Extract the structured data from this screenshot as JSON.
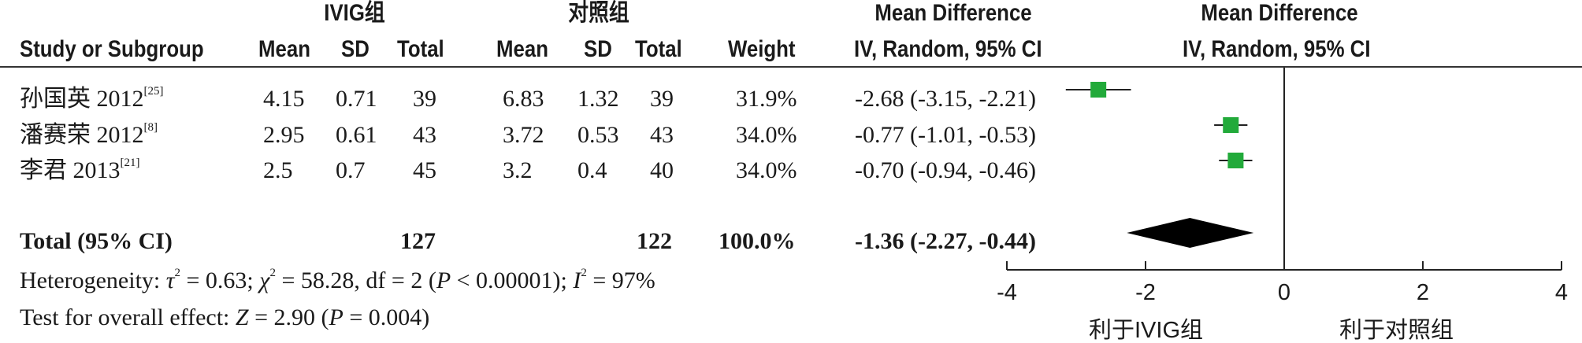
{
  "headers": {
    "group_exp": "IVIG组",
    "group_ctrl": "对照组",
    "md_label_table": "Mean Difference",
    "md_label_plot": "Mean Difference",
    "study_col": "Study or Subgroup",
    "mean_exp": "Mean",
    "sd_exp": "SD",
    "total_exp": "Total",
    "mean_ctrl": "Mean",
    "sd_ctrl": "SD",
    "total_ctrl": "Total",
    "weight": "Weight",
    "method_table": "IV, Random, 95% CI",
    "method_plot": "IV, Random, 95% CI"
  },
  "studies": [
    {
      "name": "孙国英 2012",
      "ref": "[25]",
      "mean_exp": "4.15",
      "sd_exp": "0.71",
      "total_exp": "39",
      "mean_ctrl": "6.83",
      "sd_ctrl": "1.32",
      "total_ctrl": "39",
      "weight": "31.9%",
      "ci_text": "-2.68 (-3.15, -2.21)"
    },
    {
      "name": "潘赛荣 2012",
      "ref": "[8]",
      "mean_exp": "2.95",
      "sd_exp": "0.61",
      "total_exp": "43",
      "mean_ctrl": "3.72",
      "sd_ctrl": "0.53",
      "total_ctrl": "43",
      "weight": "34.0%",
      "ci_text": "-0.77 (-1.01, -0.53)"
    },
    {
      "name": "李君 2013",
      "ref": "[21]",
      "mean_exp": "2.5",
      "sd_exp": "0.7",
      "total_exp": "45",
      "mean_ctrl": "3.2",
      "sd_ctrl": "0.4",
      "total_ctrl": "40",
      "weight": "34.0%",
      "ci_text": "-0.70 (-0.94, -0.46)"
    }
  ],
  "total": {
    "label": "Total (95% CI)",
    "total_exp": "127",
    "total_ctrl": "122",
    "weight": "100.0%",
    "ci_text": "-1.36 (-2.27, -0.44)"
  },
  "heterogeneity": {
    "prefix": "Heterogeneity: ",
    "tau": "τ",
    "tau_val": " = 0.63; ",
    "chi": "χ",
    "chi_val": " = 58.28, df = 2 (",
    "p1": "P",
    "p1_val": " < 0.00001); ",
    "i": "I",
    "i_val": " = 97%"
  },
  "overall": {
    "prefix": "Test for overall effect: ",
    "z": "Z",
    "z_val": " = 2.90 (",
    "p": "P",
    "p_val": " = 0.004)"
  },
  "axis": {
    "favours_left": "利于IVIG组",
    "favours_right": "利于对照组"
  },
  "colors": {
    "marker": "#22aa3a",
    "diamond": "#000000",
    "text": "#1a1a1a"
  },
  "chart_data": {
    "type": "forest",
    "xlim": [
      -4,
      4
    ],
    "ticks": [
      -4,
      -2,
      0,
      2,
      4
    ],
    "tick_labels": [
      "-4",
      "-2",
      "0",
      "2",
      "4"
    ],
    "null_line": 0,
    "studies": [
      {
        "name": "孙国英 2012",
        "md": -2.68,
        "lower": -3.15,
        "upper": -2.21,
        "weight": 31.9
      },
      {
        "name": "潘赛荣 2012",
        "md": -0.77,
        "lower": -1.01,
        "upper": -0.53,
        "weight": 34.0
      },
      {
        "name": "李君 2013",
        "md": -0.7,
        "lower": -0.94,
        "upper": -0.46,
        "weight": 34.0
      }
    ],
    "pooled": {
      "md": -1.36,
      "lower": -2.27,
      "upper": -0.44
    }
  }
}
